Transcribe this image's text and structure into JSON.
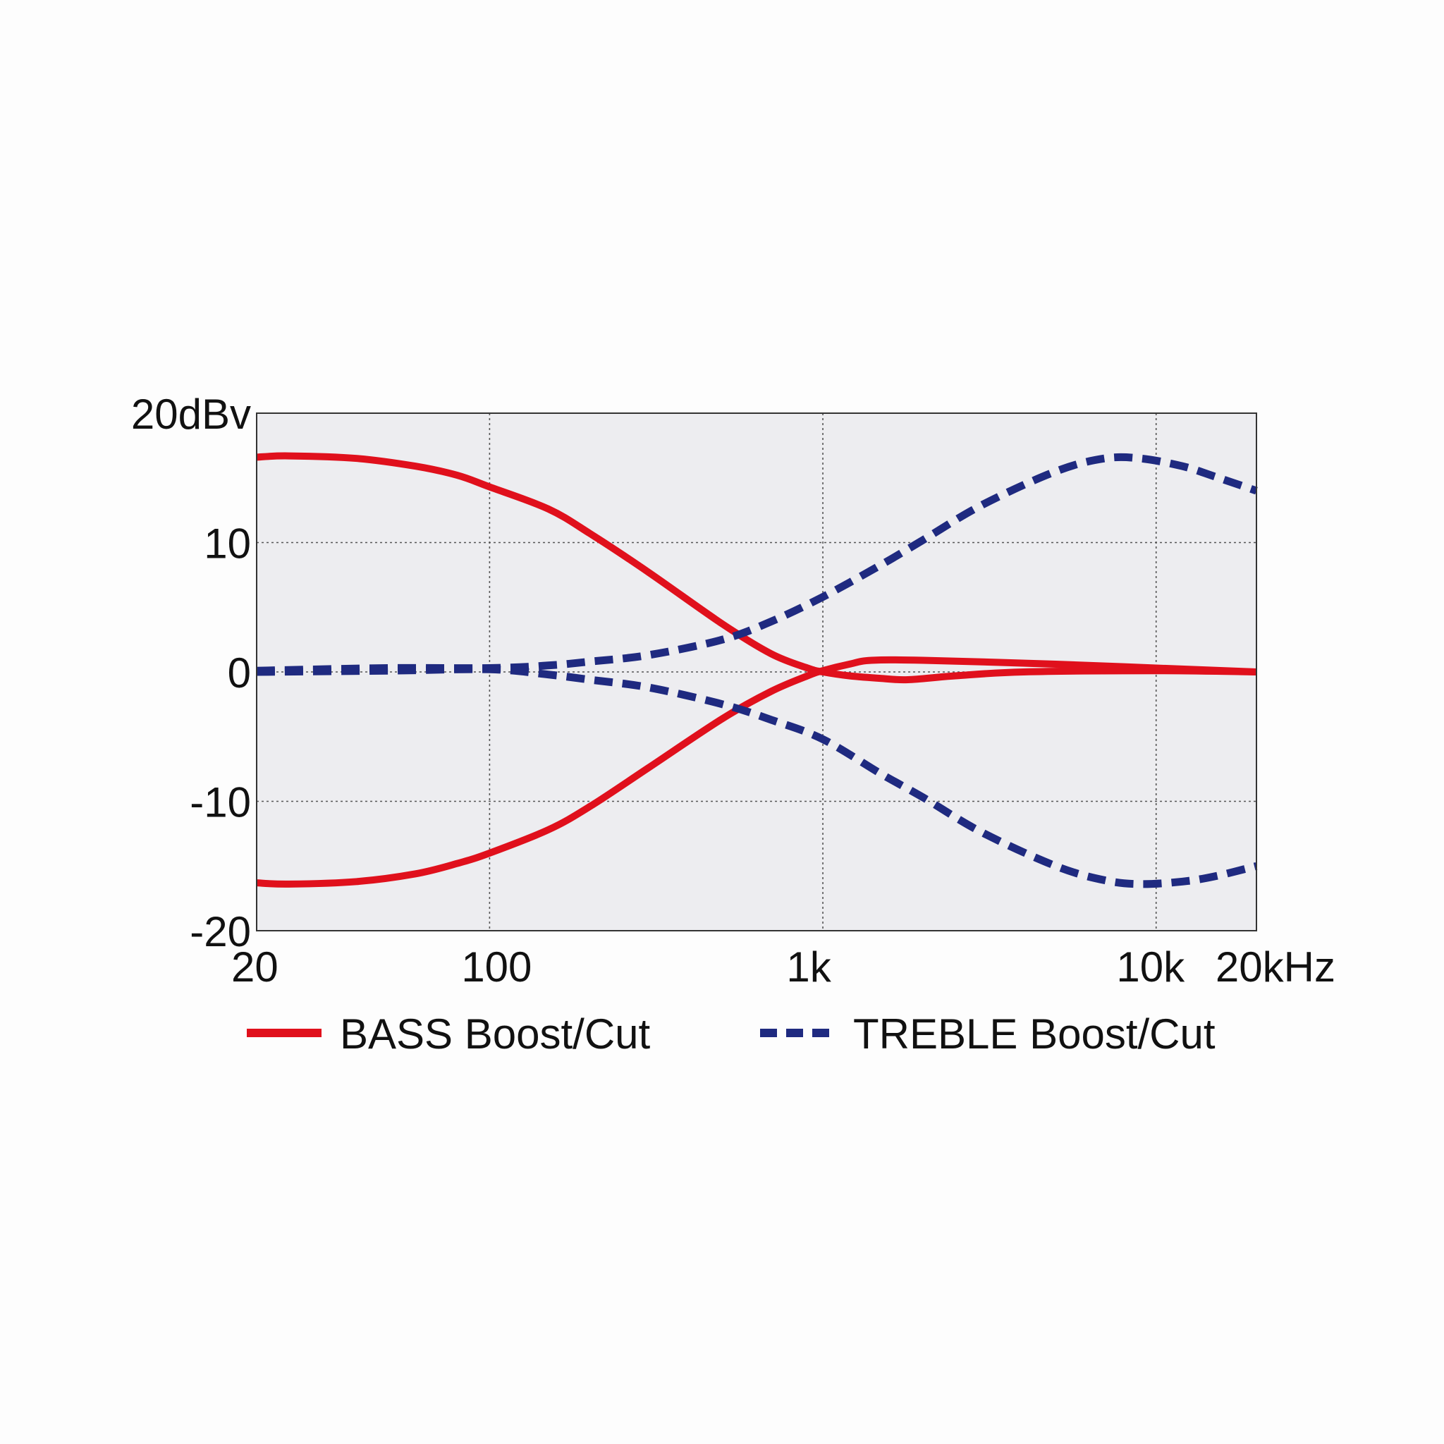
{
  "chart_data": {
    "type": "line",
    "title": "",
    "xlabel": "",
    "ylabel": "",
    "x_scale": "log",
    "xlim": [
      20,
      20000
    ],
    "ylim": [
      -20,
      20
    ],
    "grid": true,
    "legend_position": "bottom",
    "plot_background": "#ededf0",
    "x_ticks": [
      {
        "value": 20,
        "label": "20"
      },
      {
        "value": 100,
        "label": "100"
      },
      {
        "value": 1000,
        "label": "1k"
      },
      {
        "value": 10000,
        "label": "10k"
      },
      {
        "value": 20000,
        "label": "20kHz"
      }
    ],
    "y_ticks": [
      {
        "value": 20,
        "label": "20dBv"
      },
      {
        "value": 10,
        "label": "10"
      },
      {
        "value": 0,
        "label": "0"
      },
      {
        "value": -10,
        "label": "-10"
      },
      {
        "value": -20,
        "label": "-20"
      }
    ],
    "legend": [
      {
        "label": "BASS Boost/Cut",
        "color": "#e0101c",
        "dash": "solid"
      },
      {
        "label": "TREBLE Boost/Cut",
        "color": "#1f2a80",
        "dash": "dashed"
      }
    ],
    "series": [
      {
        "group": 0,
        "color": "#e0101c",
        "dash": "solid",
        "points": [
          [
            20,
            16.6
          ],
          [
            25,
            16.7
          ],
          [
            40,
            16.5
          ],
          [
            60,
            15.9
          ],
          [
            80,
            15.2
          ],
          [
            100,
            14.3
          ],
          [
            150,
            12.6
          ],
          [
            200,
            10.7
          ],
          [
            300,
            7.7
          ],
          [
            500,
            3.7
          ],
          [
            700,
            1.4
          ],
          [
            900,
            0.3
          ],
          [
            1000,
            0.0
          ],
          [
            1200,
            -0.3
          ],
          [
            1500,
            -0.5
          ],
          [
            1800,
            -0.6
          ],
          [
            2500,
            -0.3
          ],
          [
            4000,
            0.0
          ],
          [
            10000,
            0.1
          ],
          [
            20000,
            0.0
          ]
        ]
      },
      {
        "group": 0,
        "color": "#e0101c",
        "dash": "solid",
        "points": [
          [
            20,
            -16.3
          ],
          [
            25,
            -16.4
          ],
          [
            40,
            -16.2
          ],
          [
            60,
            -15.6
          ],
          [
            80,
            -14.8
          ],
          [
            100,
            -14.0
          ],
          [
            150,
            -12.2
          ],
          [
            200,
            -10.4
          ],
          [
            300,
            -7.4
          ],
          [
            500,
            -3.6
          ],
          [
            700,
            -1.5
          ],
          [
            900,
            -0.3
          ],
          [
            1000,
            0.1
          ],
          [
            1200,
            0.6
          ],
          [
            1400,
            0.9
          ],
          [
            2000,
            0.9
          ],
          [
            5000,
            0.6
          ],
          [
            10000,
            0.3
          ],
          [
            20000,
            0.0
          ]
        ]
      },
      {
        "group": 1,
        "color": "#1f2a80",
        "dash": "dashed",
        "points": [
          [
            20,
            0.1
          ],
          [
            50,
            0.3
          ],
          [
            100,
            0.3
          ],
          [
            150,
            0.5
          ],
          [
            200,
            0.8
          ],
          [
            300,
            1.3
          ],
          [
            500,
            2.5
          ],
          [
            700,
            3.9
          ],
          [
            1000,
            5.8
          ],
          [
            1500,
            8.3
          ],
          [
            2000,
            10.2
          ],
          [
            3000,
            12.9
          ],
          [
            5000,
            15.5
          ],
          [
            7000,
            16.5
          ],
          [
            9000,
            16.5
          ],
          [
            12000,
            15.9
          ],
          [
            15000,
            15.1
          ],
          [
            20000,
            14.0
          ]
        ]
      },
      {
        "group": 1,
        "color": "#1f2a80",
        "dash": "dashed",
        "points": [
          [
            20,
            0.0
          ],
          [
            50,
            0.1
          ],
          [
            100,
            0.2
          ],
          [
            150,
            -0.2
          ],
          [
            200,
            -0.6
          ],
          [
            300,
            -1.2
          ],
          [
            500,
            -2.5
          ],
          [
            700,
            -3.7
          ],
          [
            1000,
            -5.2
          ],
          [
            1500,
            -7.9
          ],
          [
            2000,
            -9.7
          ],
          [
            3000,
            -12.4
          ],
          [
            5000,
            -15.0
          ],
          [
            7000,
            -16.1
          ],
          [
            9000,
            -16.4
          ],
          [
            12000,
            -16.2
          ],
          [
            15000,
            -15.8
          ],
          [
            20000,
            -15.0
          ]
        ]
      }
    ]
  }
}
